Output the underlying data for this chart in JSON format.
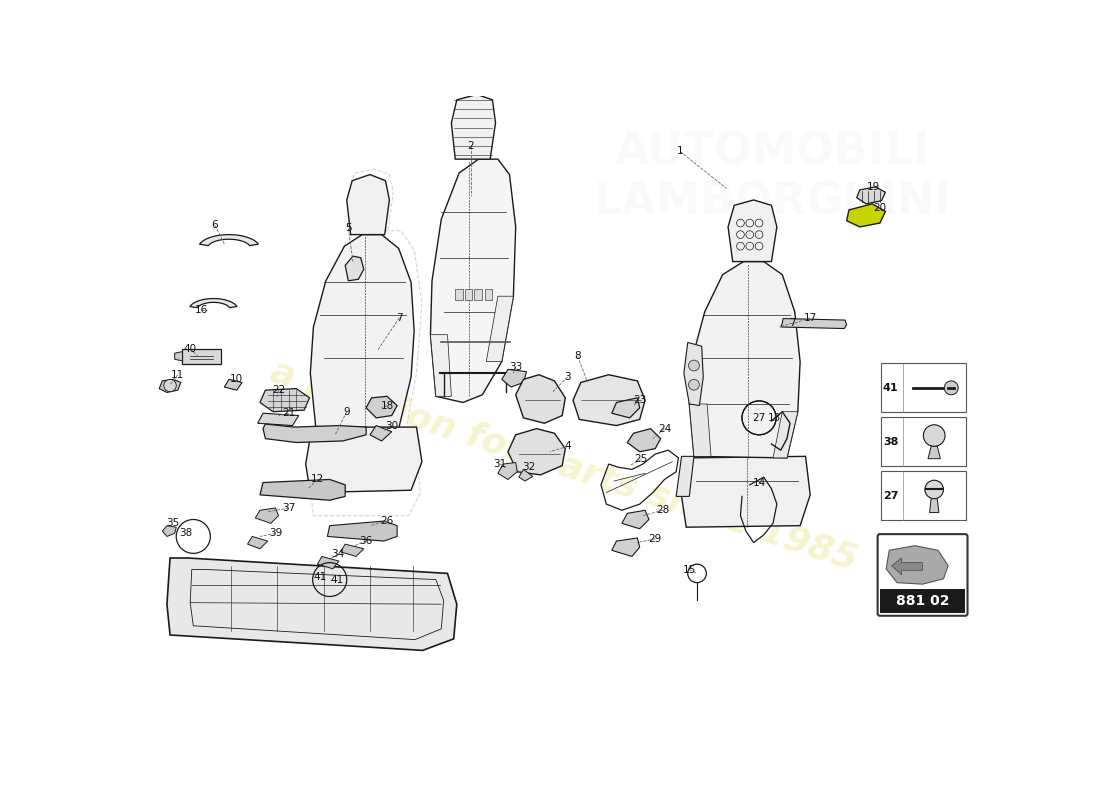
{
  "background_color": "#ffffff",
  "watermark_text": "a passion for parts since 1985",
  "part_number": "881 02",
  "fig_width": 11.0,
  "fig_height": 8.0,
  "dpi": 100,
  "lc": "#1a1a1a",
  "lc_light": "#888888",
  "lc_ghost": "#bbbbbb",
  "watermark_color": "#f0eba0",
  "watermark_alpha": 0.5,
  "part20_color": "#c8d400"
}
